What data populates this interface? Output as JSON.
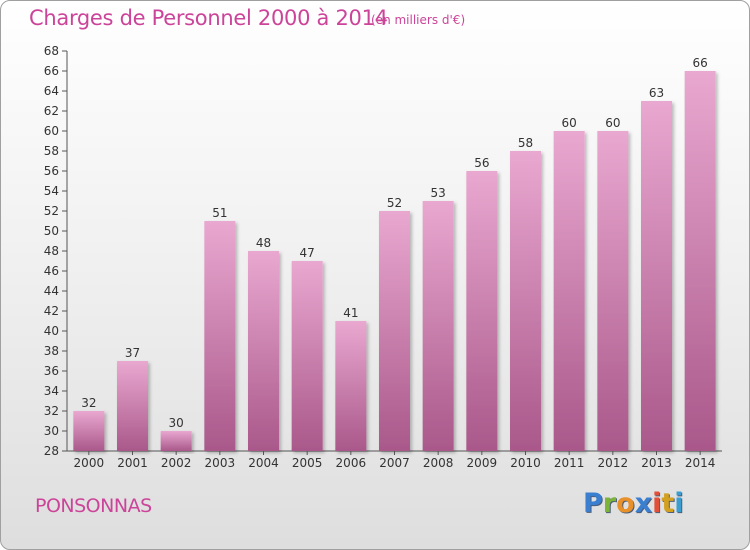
{
  "header": {
    "title": "Charges de Personnel 2000 à 2014",
    "subtitle": "(en milliers d'€)"
  },
  "footer": {
    "commune": "PONSONNAS",
    "logo_text": "Proxiti"
  },
  "colors": {
    "bar_top": "#e9a8d0",
    "bar_bottom": "#a9588a",
    "title": "#cc4499",
    "logo": [
      "#3a7fd0",
      "#7cb43a",
      "#e8902a",
      "#3a7fd0",
      "#e2503a",
      "#d4a020",
      "#3a9fd0"
    ]
  },
  "chart_data": {
    "type": "bar",
    "categories": [
      "2000",
      "2001",
      "2002",
      "2003",
      "2004",
      "2005",
      "2006",
      "2007",
      "2008",
      "2009",
      "2010",
      "2011",
      "2012",
      "2013",
      "2014"
    ],
    "values": [
      32,
      37,
      30,
      51,
      48,
      47,
      41,
      52,
      53,
      56,
      58,
      60,
      60,
      63,
      66
    ],
    "title": "Charges de Personnel 2000 à 2014",
    "ylim": [
      28,
      68
    ],
    "ytick_step": 2,
    "grid": false,
    "data_labels": true
  }
}
